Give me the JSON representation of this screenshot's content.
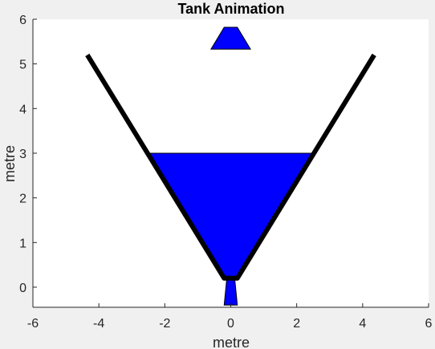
{
  "chart_data": {
    "type": "line",
    "title": "Tank Animation",
    "xlabel": "metre",
    "ylabel": "metre",
    "xlim": [
      -6,
      6
    ],
    "ylim": [
      -0.45,
      6
    ],
    "x_ticks": [
      -6,
      -4,
      -2,
      0,
      2,
      4,
      6
    ],
    "y_ticks": [
      0,
      1,
      2,
      3,
      4,
      5,
      6
    ],
    "grid": false,
    "colors": {
      "background": "#f0f0f0",
      "axes_background": "#ffffff",
      "axis": "#262626",
      "water": "#0000ff",
      "tank_wall": "#000000",
      "outline": "#000000"
    },
    "tank_wall": {
      "name": "Tank wall",
      "points": [
        [
          -4.35,
          5.2
        ],
        [
          -0.2,
          0.2
        ],
        [
          0.2,
          0.2
        ],
        [
          4.35,
          5.2
        ]
      ]
    },
    "water_fill": {
      "name": "Water in tank",
      "level": 3.0,
      "points": [
        [
          -2.5,
          3.0
        ],
        [
          2.5,
          3.0
        ],
        [
          0.2,
          0.2
        ],
        [
          -0.2,
          0.2
        ]
      ]
    },
    "inflow_stream": {
      "name": "Inflow stream",
      "points": [
        [
          -0.2,
          5.82
        ],
        [
          0.2,
          5.82
        ],
        [
          0.6,
          5.33
        ],
        [
          -0.6,
          5.33
        ]
      ]
    },
    "outflow_stream": {
      "name": "Outflow stream",
      "points": [
        [
          -0.12,
          0.2
        ],
        [
          0.12,
          0.2
        ],
        [
          0.2,
          -0.4
        ],
        [
          -0.2,
          -0.4
        ]
      ]
    }
  }
}
